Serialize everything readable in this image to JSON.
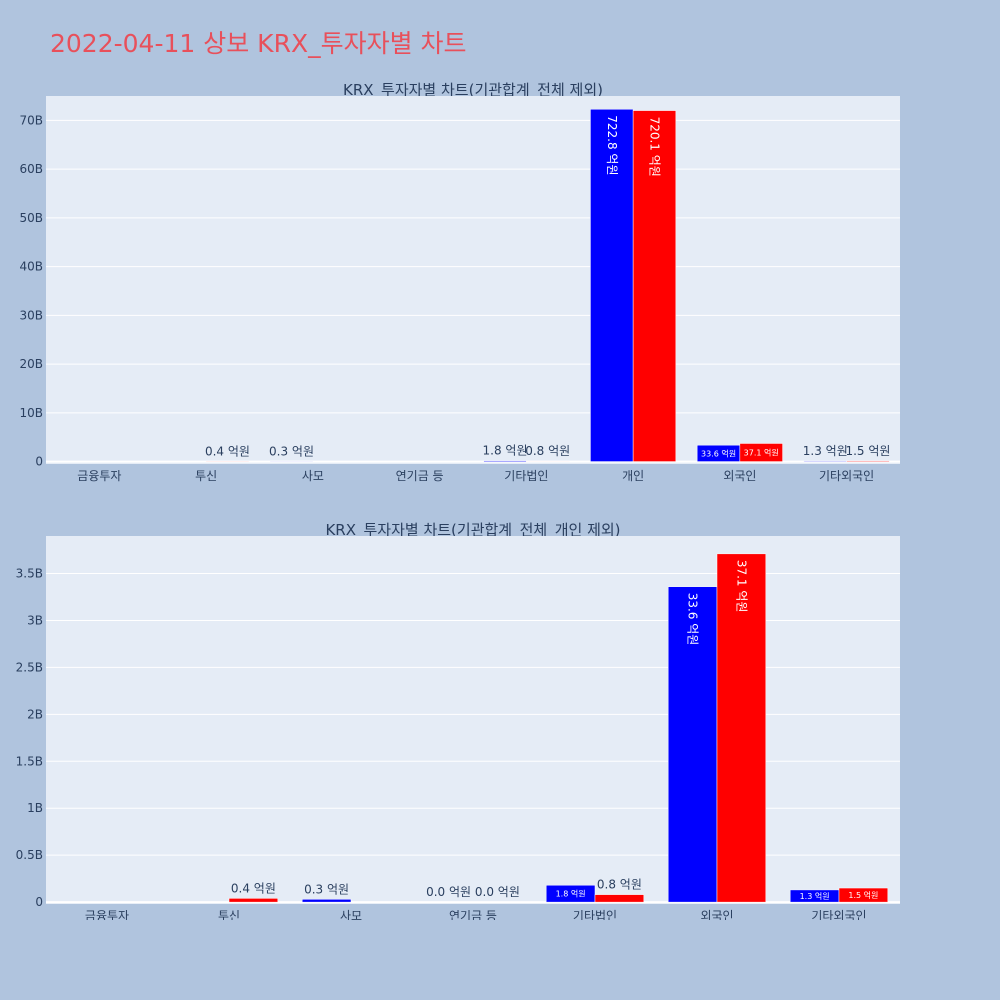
{
  "page": {
    "title": "2022-04-11 상보 KRX_투자자별 차트"
  },
  "colors": {
    "buy": "#0000ff",
    "sell": "#ff0000",
    "plot_bg": "#e5ecf6",
    "page_bg": "#b0c4de",
    "title": "#e8505b"
  },
  "chart_data": [
    {
      "type": "bar",
      "title": "KRX_투자자별 차트(기관합계_전체 제외)",
      "categories": [
        "금융투자",
        "투신",
        "사모",
        "연기금 등",
        "기타법인",
        "개인",
        "외국인",
        "기타외국인"
      ],
      "series": [
        {
          "values": [
            0,
            0,
            30000000,
            0,
            180000000,
            72280000000,
            3360000000,
            130000000
          ],
          "labels": [
            "",
            "",
            "0.3 억원",
            "",
            "1.8 억원",
            "722.8 억원",
            "33.6 억원",
            "1.3 억원"
          ]
        },
        {
          "values": [
            0,
            40000000,
            0,
            0,
            80000000,
            72010000000,
            3710000000,
            150000000
          ],
          "labels": [
            "",
            "0.4 억원",
            "",
            "",
            "0.8 억원",
            "720.1 억원",
            "37.1 억원",
            "1.5 억원"
          ]
        }
      ],
      "ylim": [
        -500000000,
        75000000000
      ],
      "yticks": [
        0,
        10000000000,
        20000000000,
        30000000000,
        40000000000,
        50000000000,
        60000000000,
        70000000000
      ],
      "ytick_labels": [
        "0",
        "10B",
        "20B",
        "30B",
        "40B",
        "50B",
        "60B",
        "70B"
      ],
      "grid": true
    },
    {
      "type": "bar",
      "title": "KRX_투자자별 차트(기관합계_전체_개인 제외)",
      "categories": [
        "금융투자",
        "투신",
        "사모",
        "연기금 등",
        "기타법인",
        "외국인",
        "기타외국인"
      ],
      "series": [
        {
          "values": [
            0,
            0,
            30000000,
            0,
            180000000,
            3360000000,
            130000000
          ],
          "labels": [
            "",
            "",
            "0.3 억원",
            "0.0 억원",
            "1.8 억원",
            "33.6 억원",
            "1.3 억원"
          ]
        },
        {
          "values": [
            0,
            40000000,
            0,
            0,
            80000000,
            3710000000,
            150000000
          ],
          "labels": [
            "",
            "0.4 억원",
            "",
            "0.0 억원",
            "0.8 억원",
            "37.1 억원",
            "1.5 억원"
          ]
        }
      ],
      "ylim": [
        -20000000,
        3900000000
      ],
      "yticks": [
        0,
        500000000,
        1000000000,
        1500000000,
        2000000000,
        2500000000,
        3000000000,
        3500000000
      ],
      "ytick_labels": [
        "0",
        "0.5B",
        "1B",
        "1.5B",
        "2B",
        "2.5B",
        "3B",
        "3.5B"
      ],
      "grid": true
    }
  ]
}
